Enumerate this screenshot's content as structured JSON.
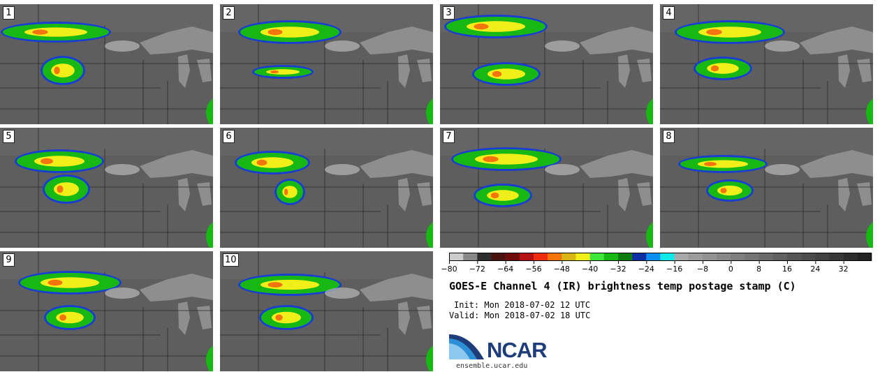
{
  "panels": [
    "1",
    "2",
    "3",
    "4",
    "5",
    "6",
    "7",
    "8",
    "9",
    "10"
  ],
  "colorbar": {
    "colors": [
      "#cccccc",
      "#888888",
      "#2e2e2e",
      "#4a1010",
      "#6e0c0c",
      "#b41212",
      "#f02c10",
      "#f4750e",
      "#d8b618",
      "#f1ef1a",
      "#3ce63a",
      "#18b814",
      "#0e7d0e",
      "#0d2fa4",
      "#0e8ef0",
      "#10e8e8",
      "#a8a8a8",
      "#9c9c9c",
      "#929292",
      "#888888",
      "#7e7e7e",
      "#747474",
      "#6a6a6a",
      "#606060",
      "#565656",
      "#4c4c4c",
      "#424242",
      "#383838",
      "#2e2e2e",
      "#242424"
    ],
    "tick_labels": [
      "−80",
      "−72",
      "−64",
      "−56",
      "−48",
      "−40",
      "−32",
      "−24",
      "−16",
      "−8",
      "0",
      "8",
      "16",
      "24",
      "32"
    ]
  },
  "title": "GOES-E Channel 4 (IR) brightness temp postage stamp (C)",
  "init": "Init: Mon 2018-07-02 12 UTC",
  "valid": "Valid: Mon 2018-07-02 18 UTC",
  "logo": {
    "name": "NCAR",
    "url": "ensemble.ucar.edu"
  }
}
